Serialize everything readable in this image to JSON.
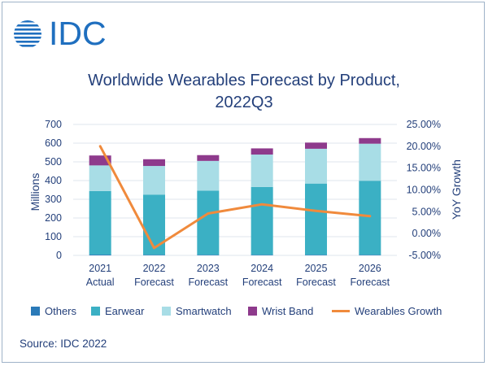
{
  "logo": {
    "text": "IDC"
  },
  "title_lines": [
    "Worldwide Wearables Forecast by Product,",
    "2022Q3"
  ],
  "source": "Source: IDC 2022",
  "colors": {
    "brand": "#1f6fbf",
    "text": "#233f7a",
    "others": "#2a7ab8",
    "earwear": "#3bb0c4",
    "smartwatch": "#a8dde6",
    "wrist_band": "#8e3a8c",
    "growth": "#f08a3c",
    "grid": "#dfe6ee"
  },
  "chart_data": {
    "type": "bar",
    "stacked": true,
    "title": "Worldwide Wearables Forecast by Product, 2022Q3",
    "categories": [
      "2021 Actual",
      "2022 Forecast",
      "2023 Forecast",
      "2024 Forecast",
      "2025 Forecast",
      "2026 Forecast"
    ],
    "category_lines": [
      [
        "2021",
        "Actual"
      ],
      [
        "2022",
        "Forecast"
      ],
      [
        "2023",
        "Forecast"
      ],
      [
        "2024",
        "Forecast"
      ],
      [
        "2025",
        "Forecast"
      ],
      [
        "2026",
        "Forecast"
      ]
    ],
    "series": [
      {
        "name": "Others",
        "key": "others",
        "values": [
          4,
          3,
          3,
          3,
          3,
          3
        ]
      },
      {
        "name": "Earwear",
        "key": "earwear",
        "values": [
          340,
          322,
          343,
          363,
          381,
          396
        ]
      },
      {
        "name": "Smartwatch",
        "key": "smartwatch",
        "values": [
          137,
          153,
          159,
          173,
          186,
          198
        ]
      },
      {
        "name": "Wrist Band",
        "key": "wrist_band",
        "values": [
          53,
          36,
          31,
          33,
          33,
          30
        ]
      }
    ],
    "line_series": {
      "name": "Wearables Growth",
      "key": "growth",
      "axis": "right",
      "values": [
        20.0,
        -3.3,
        4.6,
        6.7,
        5.2,
        4.0
      ]
    },
    "ylabel": "Millions",
    "ylim": [
      0,
      700
    ],
    "yticks": [
      "0",
      "100",
      "200",
      "300",
      "400",
      "500",
      "600",
      "700"
    ],
    "y2label": "YoY Growth",
    "y2lim": [
      -5,
      25
    ],
    "y2ticks": [
      "-5.00%",
      "0.00%",
      "5.00%",
      "10.00%",
      "15.00%",
      "20.00%",
      "25.00%"
    ],
    "grid": true,
    "legend_position": "bottom"
  }
}
